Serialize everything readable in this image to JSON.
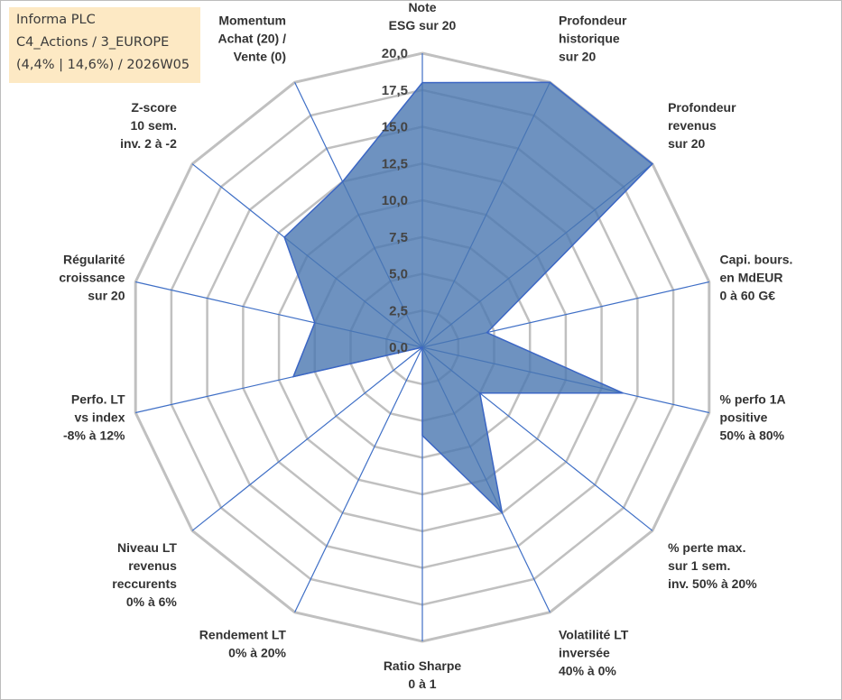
{
  "info": {
    "company": "Informa PLC",
    "category": "C4_Actions / 3_EUROPE",
    "period": "(4,4% | 14,6%) / 2026W05"
  },
  "colors": {
    "fill": "#4a77b0",
    "stroke": "#3b66c4",
    "grid": "#c0c0c0",
    "spoke": "#3f6fc6"
  },
  "chart_data": {
    "type": "radar",
    "series_name": "Informa PLC",
    "rmin": 0,
    "rmax": 20,
    "step": 2.5,
    "tick_labels": [
      "0,0",
      "2,5",
      "5,0",
      "7,5",
      "10,0",
      "12,5",
      "15,0",
      "17,5",
      "20,0"
    ],
    "axes": [
      {
        "label": [
          "Note",
          "ESG sur 20"
        ],
        "value": 18
      },
      {
        "label": [
          "Profondeur",
          "historique",
          "sur 20"
        ],
        "value": 20
      },
      {
        "label": [
          "Profondeur",
          "revenus",
          "sur 20"
        ],
        "value": 20
      },
      {
        "label": [
          "Capi. bours.",
          "en MdEUR",
          "0 à 60 G€"
        ],
        "value": 4.5
      },
      {
        "label": [
          "% perfo 1A",
          "positive",
          "50% à 80%"
        ],
        "value": 14
      },
      {
        "label": [
          "% perte max.",
          "sur 1 sem.",
          "inv. 50% à 20%"
        ],
        "value": 5
      },
      {
        "label": [
          "Volatilité LT",
          "inversée",
          "40% à 0%"
        ],
        "value": 12.5
      },
      {
        "label": [
          "Ratio Sharpe",
          "0 à 1"
        ],
        "value": 6
      },
      {
        "label": [
          "Rendement LT",
          "0% à 20%"
        ],
        "value": 0
      },
      {
        "label": [
          "Niveau LT",
          "revenus",
          "reccurents",
          "0% à 6%"
        ],
        "value": 0
      },
      {
        "label": [
          "Perfo. LT",
          "vs index",
          "-8% à 12%"
        ],
        "value": 9
      },
      {
        "label": [
          "Régularité",
          "croissance",
          "sur 20"
        ],
        "value": 7.5
      },
      {
        "label": [
          "Z-score",
          "10 sem.",
          "inv. 2 à -2"
        ],
        "value": 12
      },
      {
        "label": [
          "Momentum",
          "Achat (20) /",
          "Vente (0)"
        ],
        "value": 12.5
      }
    ]
  }
}
